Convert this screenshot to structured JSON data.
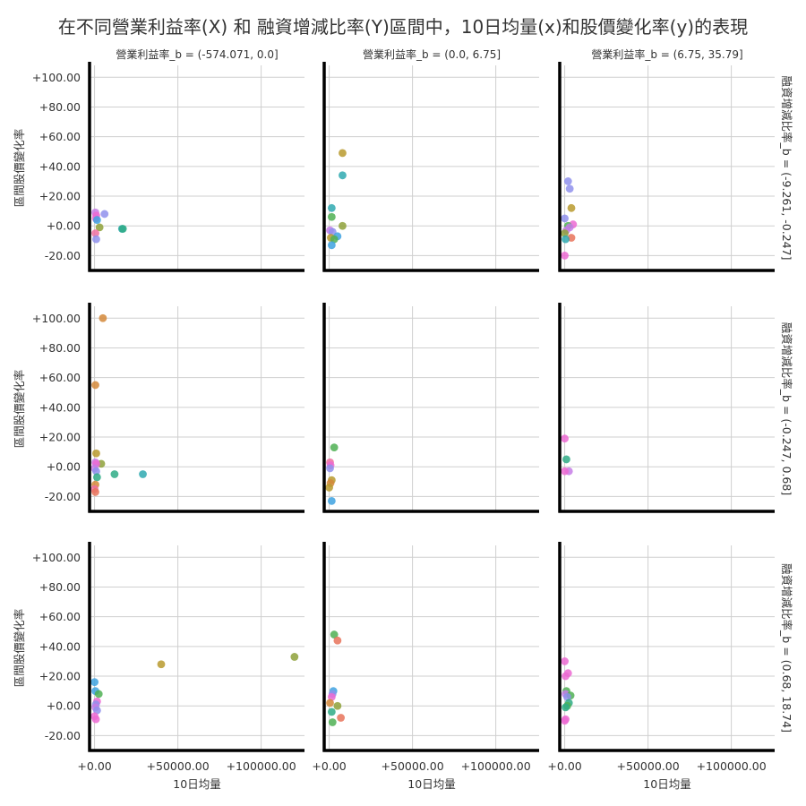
{
  "figure": {
    "title": "在不同營業利益率(X) 和 融資增減比率(Y)區間中，10日均量(x)和股價變化率(y)的表現",
    "col_titles": [
      "營業利益率_b = (-574.071, 0.0]",
      "營業利益率_b = (0.0, 6.75]",
      "營業利益率_b = (6.75, 35.79]"
    ],
    "row_titles": [
      "融資增減比率_b = (-9.261, -0.247]",
      "融資增減比率_b = (-0.247, 0.68]",
      "融資增減比率_b = (0.68, 18.74]"
    ],
    "xlabel": "10日均量",
    "ylabel": "區間股價變化率",
    "grid": true
  },
  "chart_data": {
    "type": "scatter",
    "layout": "facet-grid 3x3 (rows: 融資增減比率_b, cols: 營業利益率_b)",
    "xlim": [
      -3000,
      126000
    ],
    "ylim": [
      -30,
      108
    ],
    "x_ticks": [
      0,
      50000,
      100000
    ],
    "x_tick_labels": [
      "+0.00",
      "+50000.00",
      "+100000.00"
    ],
    "y_ticks": [
      -20,
      0,
      20,
      40,
      60,
      80,
      100
    ],
    "y_tick_labels": [
      "-20.00",
      "+0.00",
      "+20.00",
      "+40.00",
      "+60.00",
      "+80.00",
      "+100.00"
    ],
    "palette": [
      "#e8735a",
      "#d4883a",
      "#b99a2e",
      "#8ea13a",
      "#4fb054",
      "#2fab86",
      "#2fa9b0",
      "#3ea2e0",
      "#8f91ec",
      "#c57ce6",
      "#ec6ad2",
      "#ee6ea0"
    ],
    "panels": [
      {
        "row": 0,
        "col": 0,
        "points": [
          {
            "x": 500,
            "y": 9,
            "color": "#c57ce6"
          },
          {
            "x": 1000,
            "y": 7,
            "color": "#ec6ad2"
          },
          {
            "x": 6000,
            "y": 8,
            "color": "#8f91ec"
          },
          {
            "x": 800,
            "y": 5,
            "color": "#ec6ad2"
          },
          {
            "x": 1500,
            "y": 4,
            "color": "#3ea2e0"
          },
          {
            "x": 3000,
            "y": -1,
            "color": "#8ea13a"
          },
          {
            "x": 500,
            "y": -5,
            "color": "#ee6ea0"
          },
          {
            "x": 1000,
            "y": -9,
            "color": "#8f91ec"
          },
          {
            "x": 16500,
            "y": -2,
            "color": "#2fa9b0"
          },
          {
            "x": 17000,
            "y": -2,
            "color": "#2fab86"
          }
        ]
      },
      {
        "row": 0,
        "col": 1,
        "points": [
          {
            "x": 8000,
            "y": 49,
            "color": "#b99a2e"
          },
          {
            "x": 8000,
            "y": 34,
            "color": "#2fa9b0"
          },
          {
            "x": 1500,
            "y": 12,
            "color": "#2fa9b0"
          },
          {
            "x": 1500,
            "y": 6,
            "color": "#4fb054"
          },
          {
            "x": 8000,
            "y": 0,
            "color": "#8ea13a"
          },
          {
            "x": 500,
            "y": -3,
            "color": "#c57ce6"
          },
          {
            "x": 2000,
            "y": -4,
            "color": "#8f91ec"
          },
          {
            "x": 5000,
            "y": -7,
            "color": "#3ea2e0"
          },
          {
            "x": 1000,
            "y": -8,
            "color": "#b99a2e"
          },
          {
            "x": 3000,
            "y": -9,
            "color": "#4fb054"
          },
          {
            "x": 1500,
            "y": -13,
            "color": "#3ea2e0"
          }
        ]
      },
      {
        "row": 0,
        "col": 2,
        "points": [
          {
            "x": 2000,
            "y": 30,
            "color": "#8f91ec"
          },
          {
            "x": 3000,
            "y": 25,
            "color": "#8f91ec"
          },
          {
            "x": 4000,
            "y": 12,
            "color": "#b99a2e"
          },
          {
            "x": 0,
            "y": 5,
            "color": "#8f91ec"
          },
          {
            "x": 5000,
            "y": 1,
            "color": "#ec6ad2"
          },
          {
            "x": 2000,
            "y": 0,
            "color": "#4fb054"
          },
          {
            "x": 3000,
            "y": -1,
            "color": "#c57ce6"
          },
          {
            "x": 1000,
            "y": -3,
            "color": "#c57ce6"
          },
          {
            "x": 0,
            "y": -5,
            "color": "#8ea13a"
          },
          {
            "x": 4000,
            "y": -8,
            "color": "#e8735a"
          },
          {
            "x": 500,
            "y": -9,
            "color": "#2fa9b0"
          },
          {
            "x": 0,
            "y": -20,
            "color": "#ec6ad2"
          }
        ]
      },
      {
        "row": 1,
        "col": 0,
        "points": [
          {
            "x": 5000,
            "y": 100,
            "color": "#d4883a"
          },
          {
            "x": 500,
            "y": 55,
            "color": "#d4883a"
          },
          {
            "x": 1000,
            "y": 9,
            "color": "#b99a2e"
          },
          {
            "x": 4000,
            "y": 2,
            "color": "#8ea13a"
          },
          {
            "x": 500,
            "y": 3,
            "color": "#c57ce6"
          },
          {
            "x": 1000,
            "y": 2,
            "color": "#ec6ad2"
          },
          {
            "x": 0,
            "y": -1,
            "color": "#c57ce6"
          },
          {
            "x": 1000,
            "y": -3,
            "color": "#8f91ec"
          },
          {
            "x": 12000,
            "y": -5,
            "color": "#2fab86"
          },
          {
            "x": 29000,
            "y": -5,
            "color": "#2fa9b0"
          },
          {
            "x": 1500,
            "y": -7,
            "color": "#2fab86"
          },
          {
            "x": 500,
            "y": -12,
            "color": "#d4883a"
          },
          {
            "x": 0,
            "y": -15,
            "color": "#ee6ea0"
          },
          {
            "x": 500,
            "y": -17,
            "color": "#e8735a"
          }
        ]
      },
      {
        "row": 1,
        "col": 1,
        "points": [
          {
            "x": 3000,
            "y": 13,
            "color": "#4fb054"
          },
          {
            "x": 500,
            "y": 3,
            "color": "#ee6ea0"
          },
          {
            "x": 800,
            "y": 1,
            "color": "#ec6ad2"
          },
          {
            "x": 500,
            "y": -1,
            "color": "#8f91ec"
          },
          {
            "x": 1500,
            "y": -9,
            "color": "#b99a2e"
          },
          {
            "x": 800,
            "y": -11,
            "color": "#d4883a"
          },
          {
            "x": 0,
            "y": -14,
            "color": "#b99a2e"
          },
          {
            "x": 1500,
            "y": -23,
            "color": "#3ea2e0"
          }
        ]
      },
      {
        "row": 1,
        "col": 2,
        "points": [
          {
            "x": 0,
            "y": 19,
            "color": "#ec6ad2"
          },
          {
            "x": 1000,
            "y": 5,
            "color": "#2fab86"
          },
          {
            "x": 2500,
            "y": -3,
            "color": "#c57ce6"
          },
          {
            "x": 0,
            "y": -3,
            "color": "#ec6ad2"
          }
        ]
      },
      {
        "row": 2,
        "col": 0,
        "points": [
          {
            "x": 120000,
            "y": 33,
            "color": "#8ea13a"
          },
          {
            "x": 40000,
            "y": 28,
            "color": "#b99a2e"
          },
          {
            "x": 0,
            "y": 16,
            "color": "#3ea2e0"
          },
          {
            "x": 500,
            "y": 10,
            "color": "#3ea2e0"
          },
          {
            "x": 2500,
            "y": 8,
            "color": "#4fb054"
          },
          {
            "x": 1500,
            "y": 3,
            "color": "#ec6ad2"
          },
          {
            "x": 800,
            "y": 1,
            "color": "#8f91ec"
          },
          {
            "x": 500,
            "y": -1,
            "color": "#c57ce6"
          },
          {
            "x": 1500,
            "y": -3,
            "color": "#8f91ec"
          },
          {
            "x": 0,
            "y": -7,
            "color": "#ec6ad2"
          },
          {
            "x": 800,
            "y": -9,
            "color": "#ec6ad2"
          }
        ]
      },
      {
        "row": 2,
        "col": 1,
        "points": [
          {
            "x": 3000,
            "y": 48,
            "color": "#4fb054"
          },
          {
            "x": 5000,
            "y": 44,
            "color": "#e8735a"
          },
          {
            "x": 2500,
            "y": 10,
            "color": "#3ea2e0"
          },
          {
            "x": 2000,
            "y": 8,
            "color": "#8f91ec"
          },
          {
            "x": 1500,
            "y": 6,
            "color": "#ec6ad2"
          },
          {
            "x": 500,
            "y": 2,
            "color": "#d4883a"
          },
          {
            "x": 5000,
            "y": 0,
            "color": "#8ea13a"
          },
          {
            "x": 1500,
            "y": -4,
            "color": "#2fab86"
          },
          {
            "x": 7000,
            "y": -8,
            "color": "#e8735a"
          },
          {
            "x": 2000,
            "y": -11,
            "color": "#4fb054"
          }
        ]
      },
      {
        "row": 2,
        "col": 2,
        "points": [
          {
            "x": 0,
            "y": 30,
            "color": "#ec6ad2"
          },
          {
            "x": 2000,
            "y": 22,
            "color": "#ec6ad2"
          },
          {
            "x": 500,
            "y": 20,
            "color": "#ec6ad2"
          },
          {
            "x": 1000,
            "y": 10,
            "color": "#4fb054"
          },
          {
            "x": 500,
            "y": 8,
            "color": "#c57ce6"
          },
          {
            "x": 3500,
            "y": 7,
            "color": "#4fb054"
          },
          {
            "x": 1500,
            "y": 6,
            "color": "#8f91ec"
          },
          {
            "x": 2500,
            "y": 2,
            "color": "#2fab86"
          },
          {
            "x": 1500,
            "y": 0,
            "color": "#4fb054"
          },
          {
            "x": 500,
            "y": -1,
            "color": "#2fab86"
          },
          {
            "x": 500,
            "y": -9,
            "color": "#ec6ad2"
          },
          {
            "x": 0,
            "y": -10,
            "color": "#ec6ad2"
          }
        ]
      }
    ]
  }
}
